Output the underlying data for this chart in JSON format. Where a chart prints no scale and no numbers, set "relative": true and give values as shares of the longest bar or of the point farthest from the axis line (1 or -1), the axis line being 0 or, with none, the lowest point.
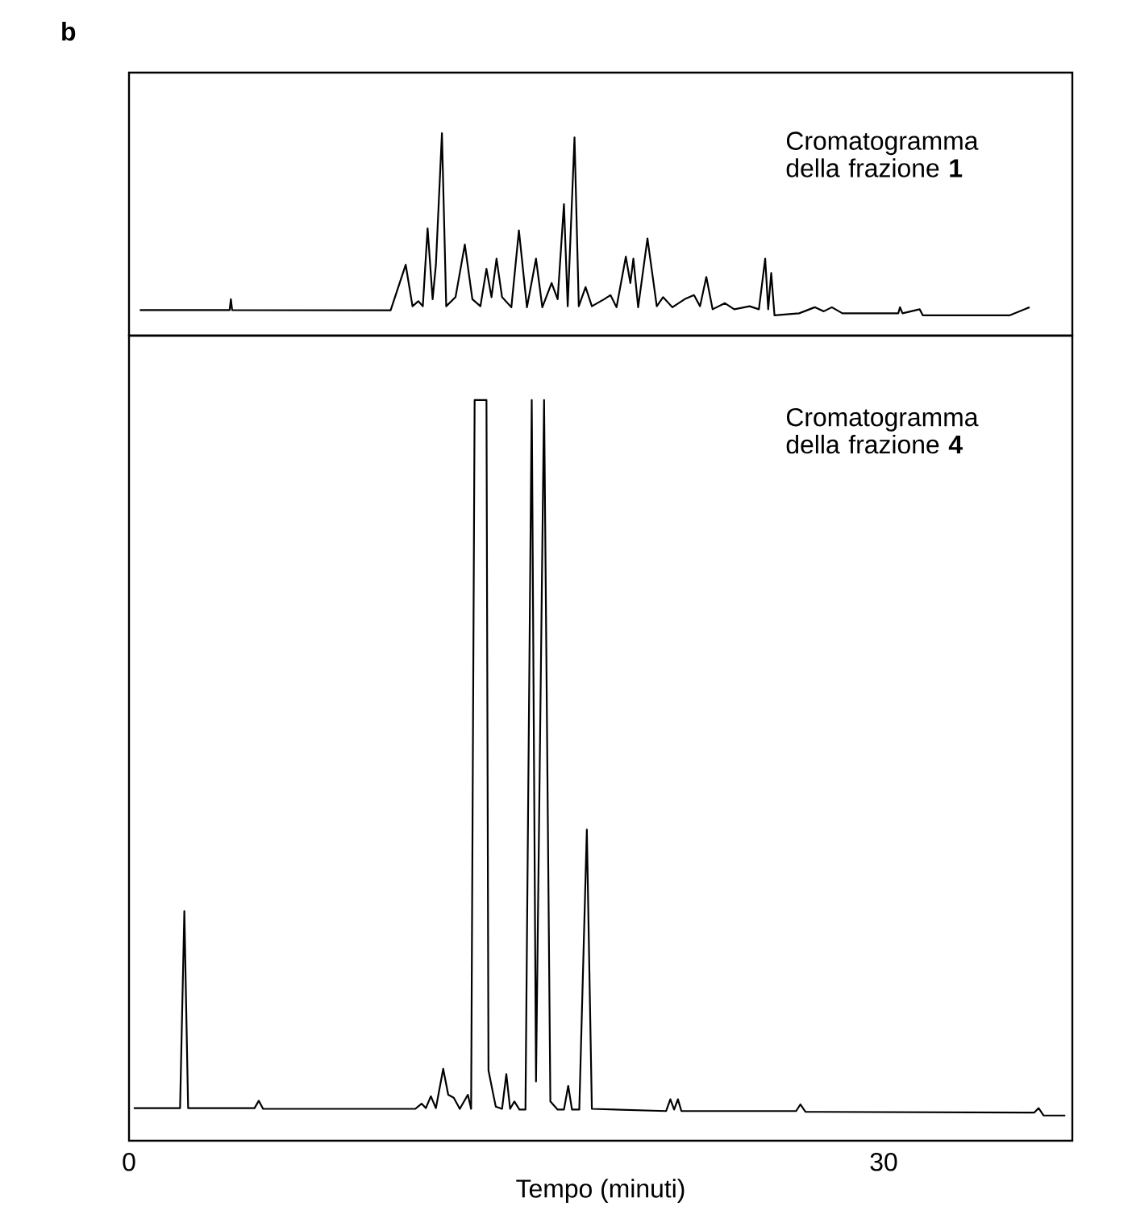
{
  "chart_data": [
    {
      "type": "line",
      "relative": true,
      "title": "Cromatogramma della frazione **1**",
      "annotations": [
        "b"
      ],
      "xlim": [
        0,
        37.5
      ],
      "tick_labels": false,
      "series": [
        {
          "color": "#000000",
          "x": [
            0.43,
            4.0,
            4.05,
            4.1,
            10.4,
            11.0,
            11.27,
            11.5,
            11.68,
            11.87,
            12.07,
            12.2,
            12.44,
            12.61,
            12.98,
            13.35,
            13.65,
            13.97,
            14.21,
            14.41,
            14.61,
            14.83,
            15.2,
            15.5,
            15.82,
            16.18,
            16.43,
            16.8,
            17.04,
            17.29,
            17.44,
            17.71,
            17.88,
            18.15,
            18.4,
            18.89,
            19.14,
            19.38,
            19.75,
            19.93,
            20.05,
            20.24,
            20.61,
            20.98,
            21.23,
            21.6,
            22.09,
            22.46,
            22.7,
            22.95,
            23.2,
            23.69,
            24.06,
            24.67,
            25.04,
            25.29,
            25.41,
            25.53,
            25.66,
            26.64,
            27.26,
            27.62,
            27.94,
            28.36,
            30.58,
            30.65,
            30.75,
            31.43,
            31.56,
            35.0,
            35.8
          ],
          "values": [
            0.126,
            0.126,
            0.18,
            0.126,
            0.125,
            0.35,
            0.145,
            0.17,
            0.145,
            0.53,
            0.18,
            0.35,
            1.0,
            0.145,
            0.19,
            0.45,
            0.18,
            0.145,
            0.33,
            0.19,
            0.38,
            0.19,
            0.14,
            0.52,
            0.14,
            0.38,
            0.14,
            0.26,
            0.18,
            0.65,
            0.145,
            0.98,
            0.145,
            0.24,
            0.145,
            0.18,
            0.2,
            0.14,
            0.39,
            0.26,
            0.38,
            0.14,
            0.48,
            0.145,
            0.19,
            0.14,
            0.18,
            0.2,
            0.145,
            0.29,
            0.13,
            0.16,
            0.13,
            0.145,
            0.13,
            0.38,
            0.13,
            0.31,
            0.1,
            0.11,
            0.14,
            0.12,
            0.14,
            0.11,
            0.11,
            0.14,
            0.11,
            0.13,
            0.1,
            0.1,
            0.14
          ]
        }
      ]
    },
    {
      "type": "line",
      "relative": true,
      "title": "Cromatogramma della frazione **4**",
      "xlabel": "Tempo (minuti)",
      "xlim": [
        0,
        37.5
      ],
      "xticks": [
        0,
        30
      ],
      "tick_labels": "x",
      "series": [
        {
          "color": "#000000",
          "x": [
            0.19,
            2.03,
            2.2,
            2.35,
            4.99,
            5.16,
            5.33,
            11.38,
            11.63,
            11.8,
            12.0,
            12.2,
            12.49,
            12.69,
            12.91,
            13.15,
            13.47,
            13.6,
            13.74,
            14.21,
            14.29,
            14.46,
            14.58,
            14.83,
            15.0,
            15.15,
            15.32,
            15.52,
            15.76,
            16.01,
            16.18,
            16.5,
            16.75,
            17.04,
            17.29,
            17.46,
            17.61,
            17.9,
            18.2,
            18.4,
            21.35,
            21.52,
            21.67,
            21.82,
            21.96,
            26.52,
            26.69,
            26.89,
            35.99,
            36.16,
            36.36,
            37.22
          ],
          "values": [
            0.044,
            0.044,
            0.31,
            0.044,
            0.044,
            0.054,
            0.043,
            0.043,
            0.05,
            0.044,
            0.06,
            0.044,
            0.097,
            0.062,
            0.058,
            0.043,
            0.062,
            0.043,
            1.0,
            1.0,
            0.095,
            0.066,
            0.046,
            0.043,
            0.09,
            0.043,
            0.053,
            0.042,
            0.042,
            1.0,
            0.08,
            1.0,
            0.053,
            0.042,
            0.042,
            0.074,
            0.042,
            0.042,
            0.42,
            0.043,
            0.04,
            0.056,
            0.042,
            0.056,
            0.04,
            0.04,
            0.049,
            0.039,
            0.038,
            0.044,
            0.034,
            0.034
          ]
        }
      ]
    }
  ]
}
